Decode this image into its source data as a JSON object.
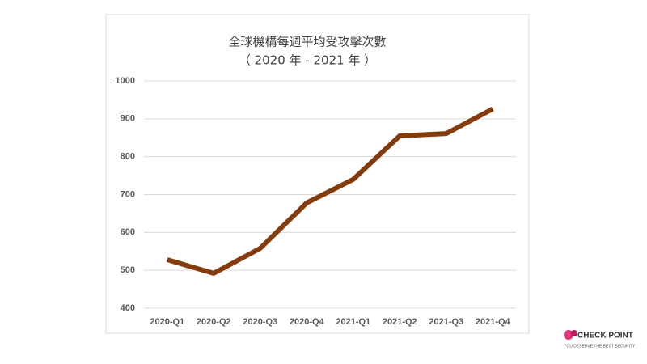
{
  "chart_data": {
    "type": "line",
    "title": "全球機構每週平均受攻擊次數",
    "subtitle": "（ 2020 年 - 2021 年 ）",
    "categories": [
      "2020-Q1",
      "2020-Q2",
      "2020-Q3",
      "2020-Q4",
      "2021-Q1",
      "2021-Q2",
      "2021-Q3",
      "2021-Q4"
    ],
    "series": [
      {
        "color": "#843c0c",
        "values": [
          528,
          492,
          558,
          678,
          740,
          855,
          861,
          926
        ]
      }
    ],
    "ylim": [
      400,
      1000
    ],
    "yticks": [
      400,
      500,
      600,
      700,
      800,
      900,
      1000
    ],
    "grid": true
  },
  "logo": {
    "name": "CHECK POINT",
    "tagline": "YOU DESERVE THE BEST SECURITY"
  }
}
